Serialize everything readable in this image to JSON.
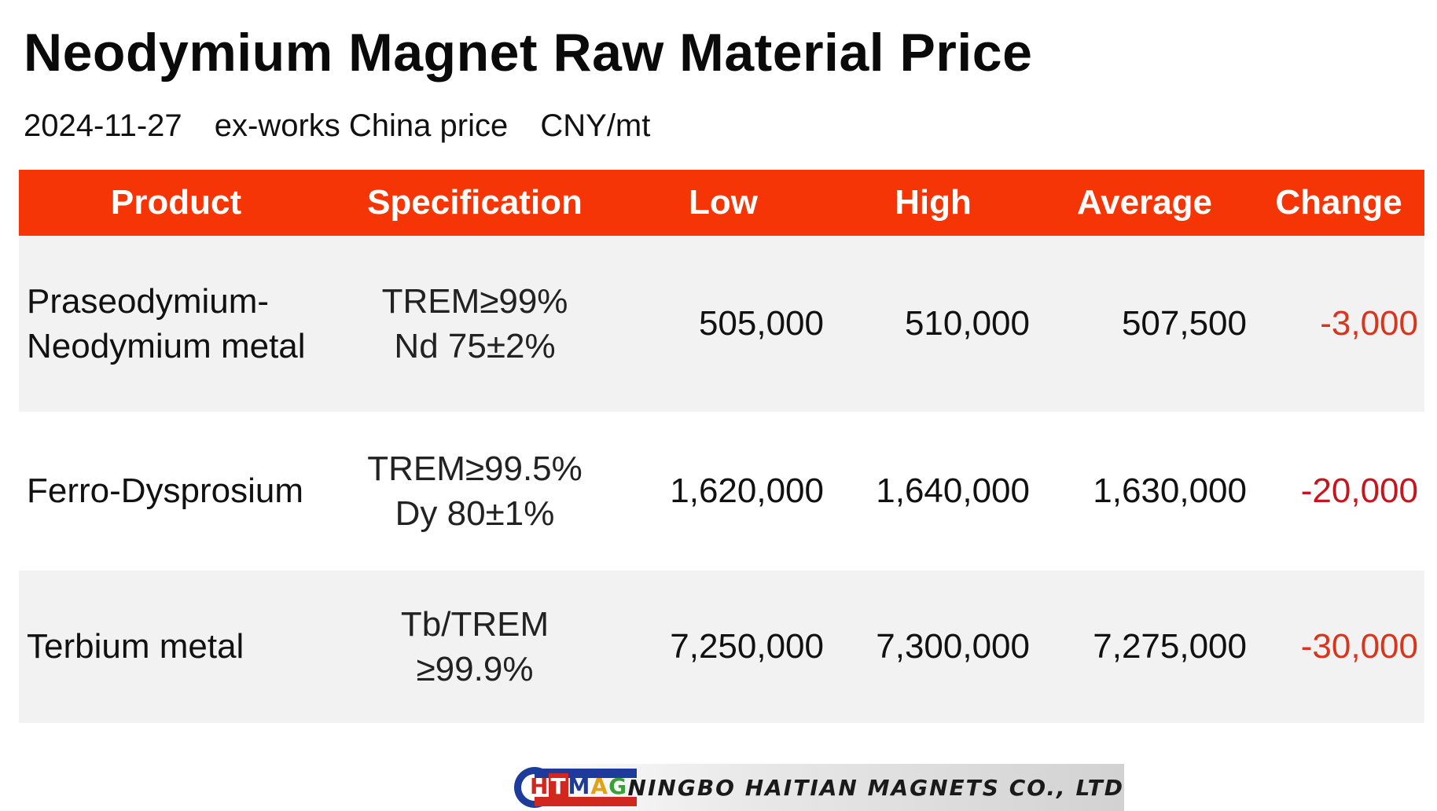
{
  "chart_data": {
    "type": "table",
    "title": "Neodymium Magnet Raw Material Price",
    "subtitle": {
      "date": "2024-11-27",
      "basis": "ex-works China price",
      "unit": "CNY/mt"
    },
    "columns": [
      "Product",
      "Specification",
      "Low",
      "High",
      "Average",
      "Change"
    ],
    "rows": [
      {
        "product": [
          "Praseodymium-",
          "Neodymium metal"
        ],
        "specification": [
          "TREM≥99%",
          "Nd 75±2%"
        ],
        "low": "505,000",
        "high": "510,000",
        "average": "507,500",
        "change": "-3,000"
      },
      {
        "product": [
          "Ferro-Dysprosium"
        ],
        "specification": [
          "TREM≥99.5%",
          "Dy 80±1%"
        ],
        "low": "1,620,000",
        "high": "1,640,000",
        "average": "1,630,000",
        "change": "-20,000"
      },
      {
        "product": [
          "Terbium metal"
        ],
        "specification": [
          "Tb/TREM",
          "≥99.9%"
        ],
        "low": "7,250,000",
        "high": "7,300,000",
        "average": "7,275,000",
        "change": "-30,000"
      }
    ],
    "colors": {
      "header_background": "#f53506",
      "header_text": "#ffffff",
      "negative_change": "#d8351e",
      "row_stripe": "#f2f2f2"
    }
  },
  "logo": {
    "letters": [
      "H",
      "T",
      "M",
      "A",
      "G"
    ],
    "company": "NINGBO HAITIAN MAGNETS CO., LTD"
  }
}
